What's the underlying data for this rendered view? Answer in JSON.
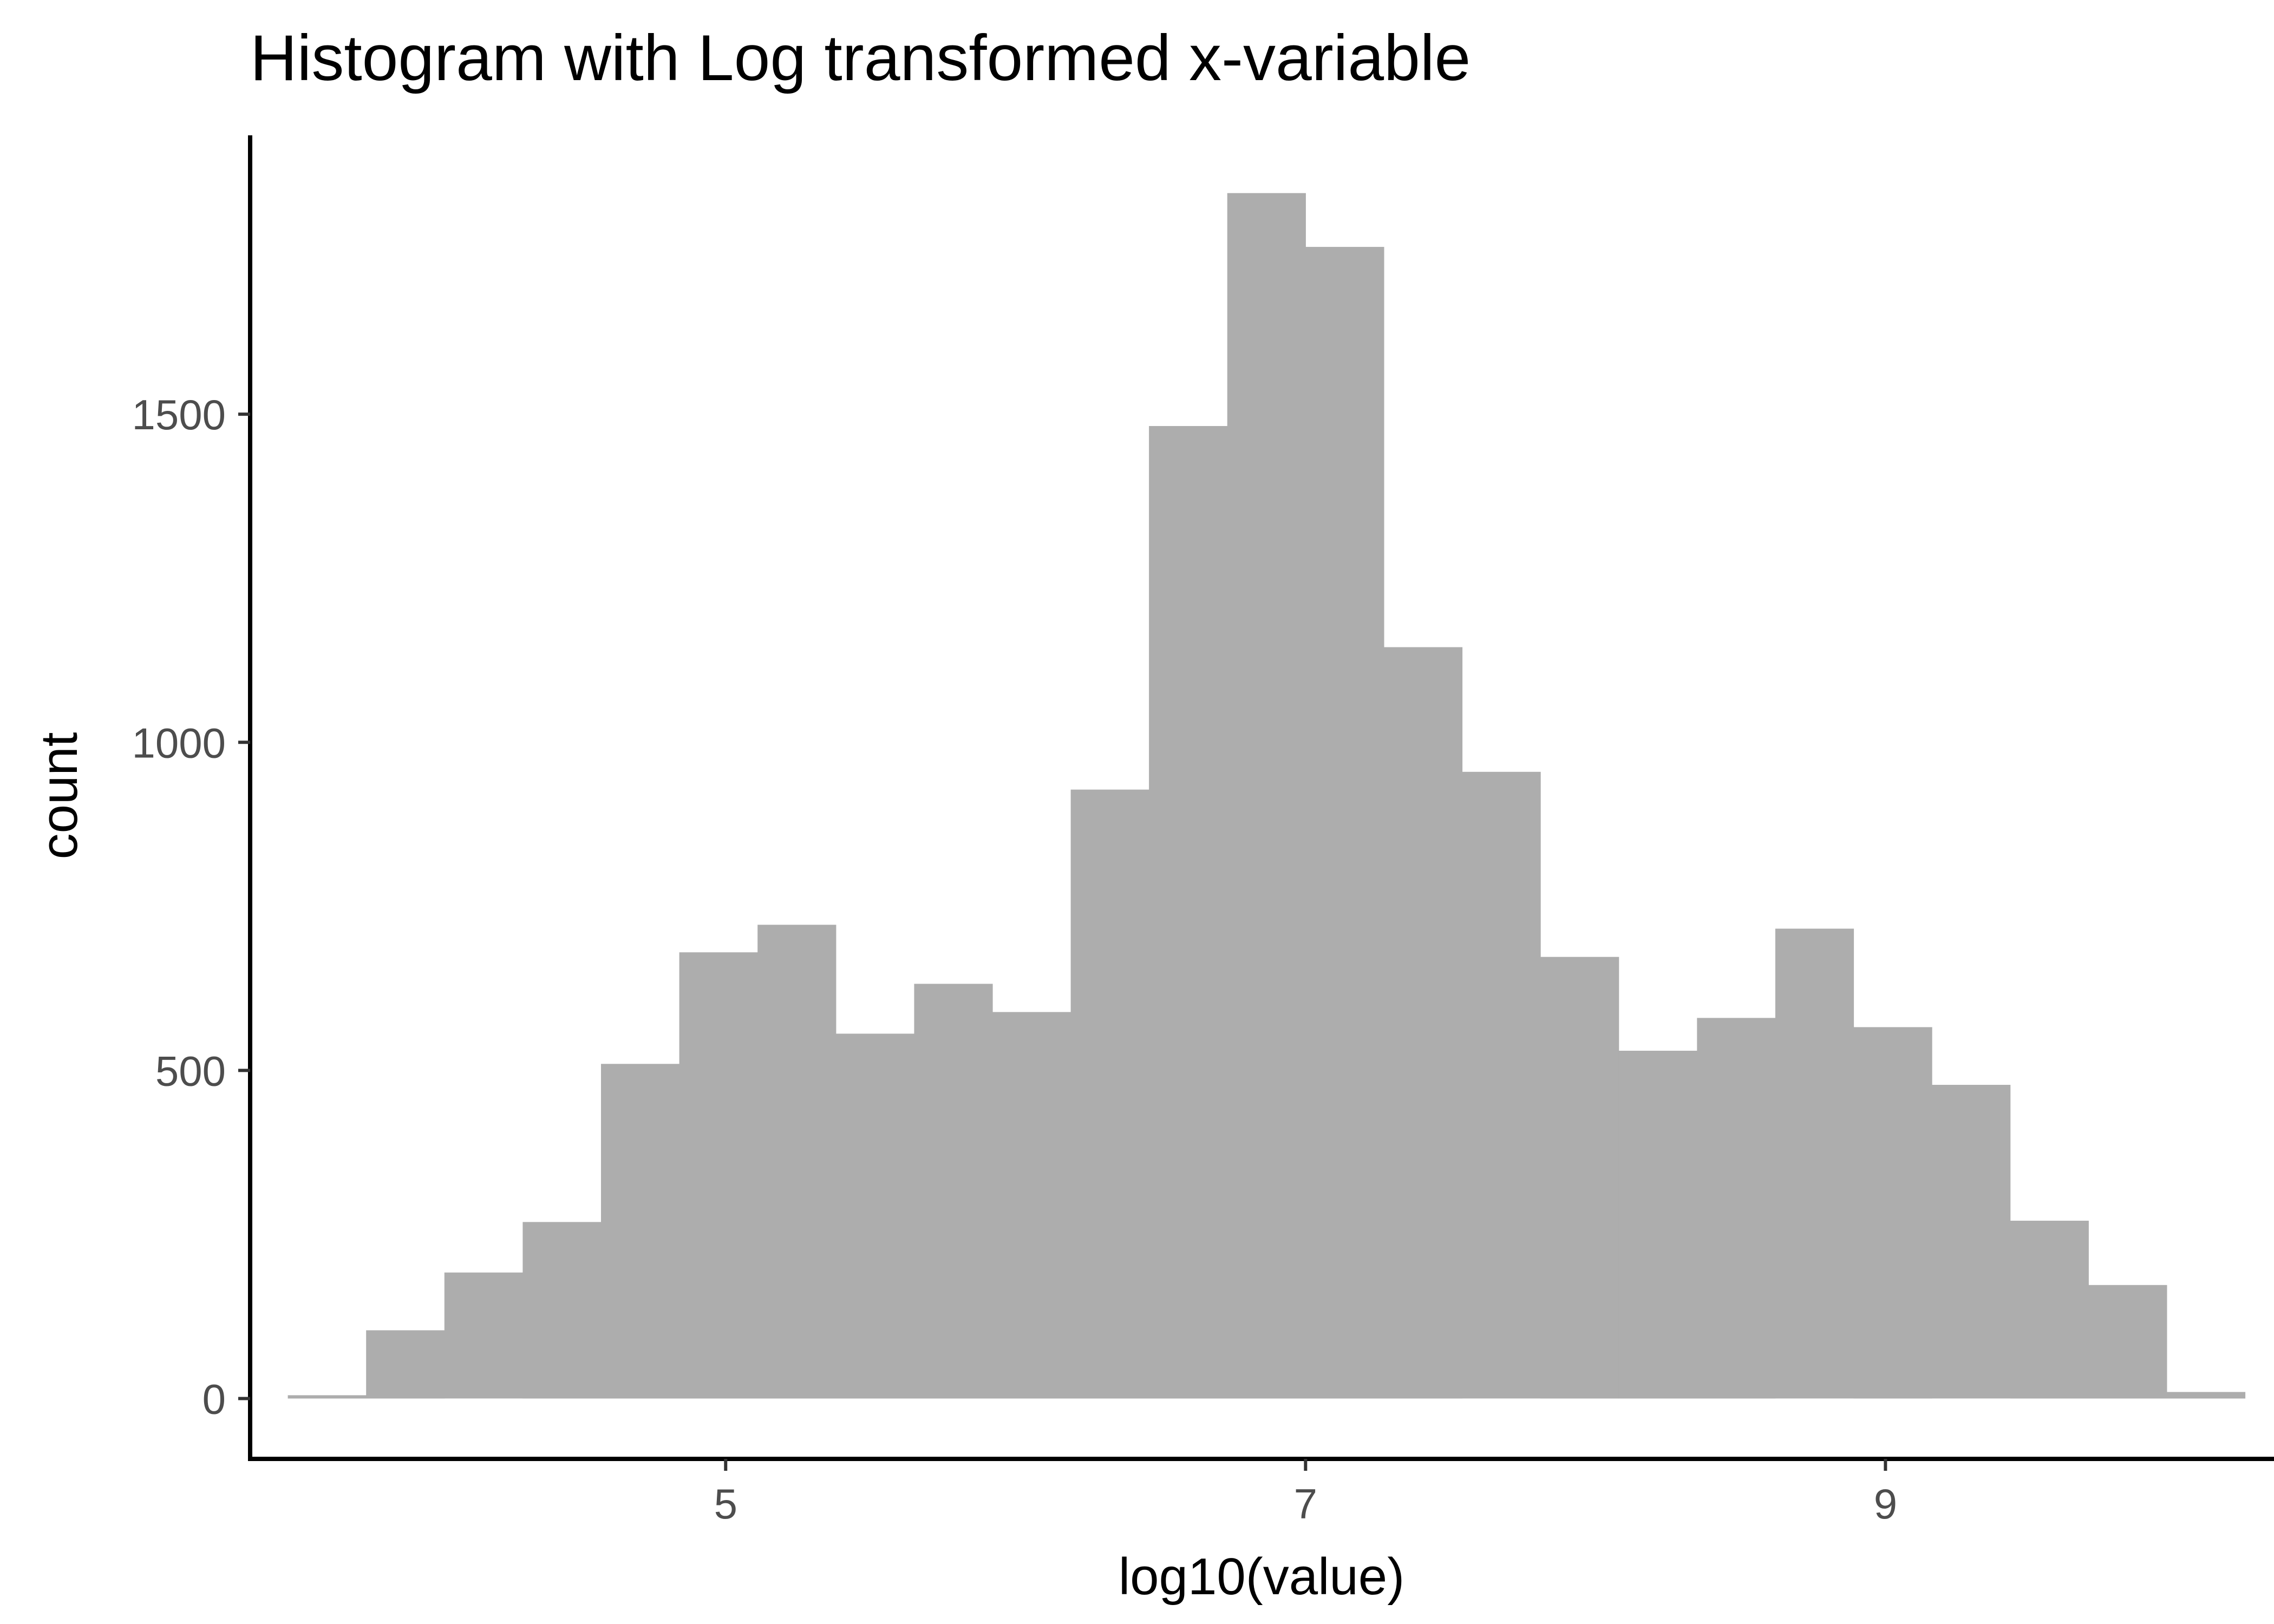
{
  "chart_data": {
    "type": "bar",
    "title": "Histogram with Log transformed x-variable",
    "xlabel": "log10(value)",
    "ylabel": "count",
    "xlim": [
      3.36,
      10.34
    ],
    "ylim": [
      -92,
      1925
    ],
    "x_ticks": [
      5,
      7,
      9
    ],
    "y_ticks": [
      0,
      500,
      1000,
      1500
    ],
    "bin_width": 0.27,
    "bin_starts": [
      3.49,
      3.76,
      4.03,
      4.3,
      4.57,
      4.84,
      5.11,
      5.38,
      5.65,
      5.92,
      6.19,
      6.46,
      6.73,
      7.0,
      7.27,
      7.54,
      7.81,
      8.08,
      8.35,
      8.62,
      8.89,
      9.16,
      9.43,
      9.7,
      9.97
    ],
    "values": [
      5,
      104,
      192,
      269,
      510,
      680,
      722,
      556,
      632,
      589,
      928,
      1482,
      1837,
      1755,
      1145,
      955,
      673,
      530,
      580,
      716,
      566,
      478,
      271,
      173,
      10
    ],
    "bar_color": "#adadad",
    "grid": false,
    "legend": "none"
  }
}
